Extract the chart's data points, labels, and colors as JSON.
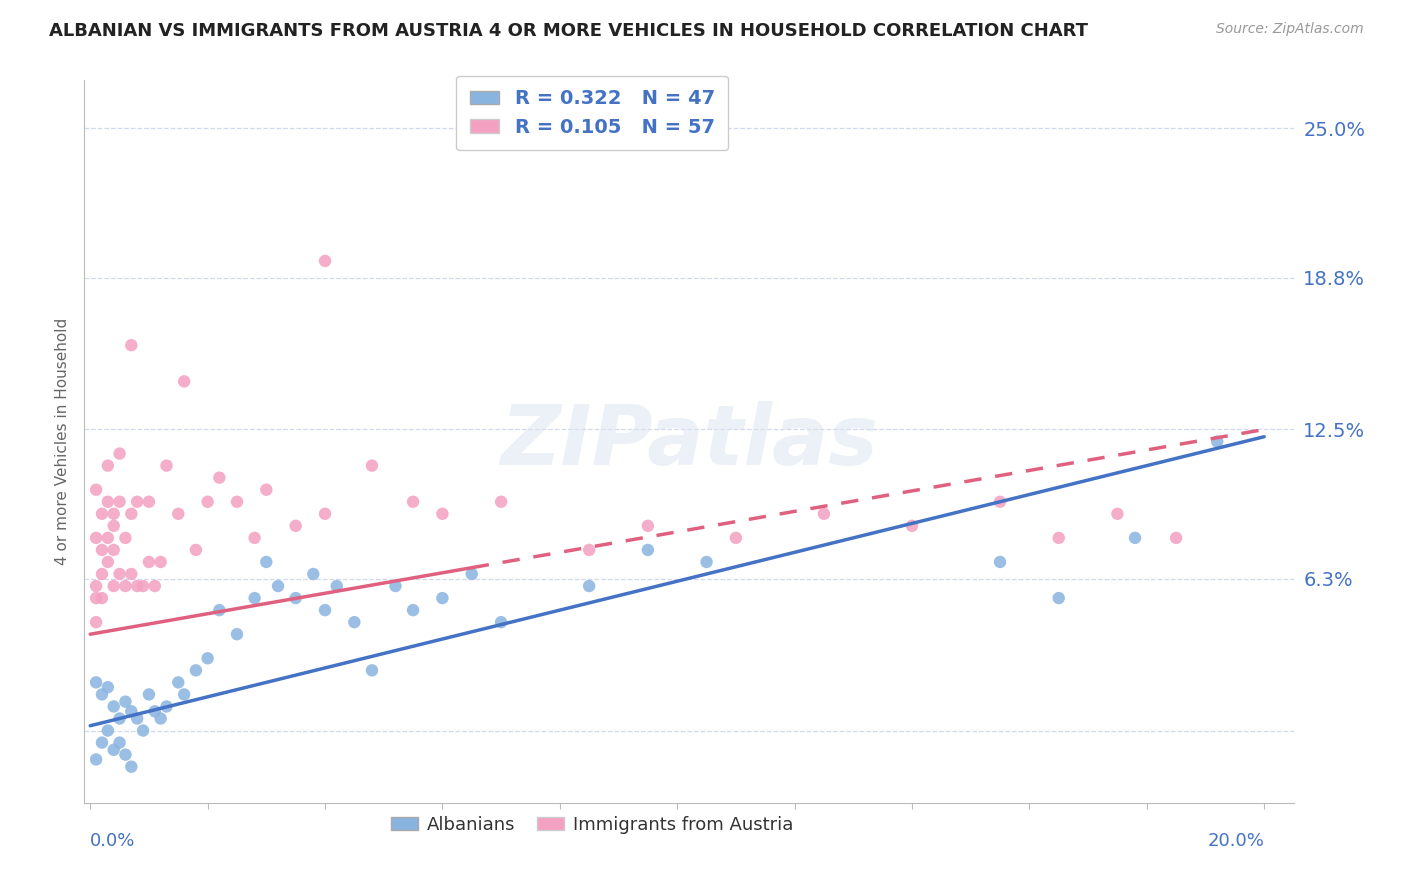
{
  "title": "ALBANIAN VS IMMIGRANTS FROM AUSTRIA 4 OR MORE VEHICLES IN HOUSEHOLD CORRELATION CHART",
  "source": "Source: ZipAtlas.com",
  "ylabel": "4 or more Vehicles in Household",
  "ytick_vals": [
    0.0,
    0.063,
    0.125,
    0.188,
    0.25
  ],
  "ytick_labels": [
    "",
    "6.3%",
    "12.5%",
    "18.8%",
    "25.0%"
  ],
  "xlim": [
    -0.001,
    0.205
  ],
  "ylim": [
    -0.03,
    0.27
  ],
  "legend_r1": "R = 0.322",
  "legend_n1": "N = 47",
  "legend_r2": "R = 0.105",
  "legend_n2": "N = 57",
  "color_albanian": "#8ab4e0",
  "color_austria": "#f4a0c0",
  "color_line_albanian": "#4472c4",
  "color_line_austria": "#e06080",
  "background_color": "#ffffff",
  "grid_color": "#d0d8ec",
  "albanians_x": [
    0.001,
    0.001,
    0.002,
    0.002,
    0.003,
    0.003,
    0.004,
    0.004,
    0.005,
    0.005,
    0.006,
    0.006,
    0.007,
    0.007,
    0.008,
    0.009,
    0.01,
    0.011,
    0.012,
    0.013,
    0.015,
    0.016,
    0.018,
    0.02,
    0.022,
    0.025,
    0.028,
    0.03,
    0.032,
    0.035,
    0.038,
    0.04,
    0.042,
    0.045,
    0.048,
    0.052,
    0.055,
    0.06,
    0.065,
    0.07,
    0.085,
    0.095,
    0.105,
    0.155,
    0.165,
    0.178,
    0.192
  ],
  "albanians_y": [
    -0.012,
    0.02,
    -0.005,
    0.015,
    0.0,
    0.018,
    0.01,
    -0.008,
    0.005,
    -0.005,
    0.012,
    -0.01,
    0.008,
    -0.015,
    0.005,
    0.0,
    0.015,
    0.008,
    0.005,
    0.01,
    0.02,
    0.015,
    0.025,
    0.03,
    0.05,
    0.04,
    0.055,
    0.07,
    0.06,
    0.055,
    0.065,
    0.05,
    0.06,
    0.045,
    0.025,
    0.06,
    0.05,
    0.055,
    0.065,
    0.045,
    0.06,
    0.075,
    0.07,
    0.07,
    0.055,
    0.08,
    0.12
  ],
  "austria_x": [
    0.001,
    0.001,
    0.001,
    0.001,
    0.001,
    0.002,
    0.002,
    0.002,
    0.002,
    0.003,
    0.003,
    0.003,
    0.003,
    0.004,
    0.004,
    0.004,
    0.004,
    0.005,
    0.005,
    0.005,
    0.006,
    0.006,
    0.007,
    0.007,
    0.007,
    0.008,
    0.008,
    0.009,
    0.01,
    0.01,
    0.011,
    0.012,
    0.013,
    0.015,
    0.016,
    0.018,
    0.02,
    0.022,
    0.025,
    0.028,
    0.03,
    0.035,
    0.04,
    0.048,
    0.055,
    0.06,
    0.07,
    0.085,
    0.095,
    0.11,
    0.125,
    0.14,
    0.155,
    0.165,
    0.175,
    0.185,
    0.04
  ],
  "austria_y": [
    0.06,
    0.08,
    0.055,
    0.1,
    0.045,
    0.065,
    0.09,
    0.075,
    0.055,
    0.08,
    0.07,
    0.095,
    0.11,
    0.06,
    0.085,
    0.075,
    0.09,
    0.065,
    0.095,
    0.115,
    0.06,
    0.08,
    0.065,
    0.09,
    0.16,
    0.06,
    0.095,
    0.06,
    0.07,
    0.095,
    0.06,
    0.07,
    0.11,
    0.09,
    0.145,
    0.075,
    0.095,
    0.105,
    0.095,
    0.08,
    0.1,
    0.085,
    0.09,
    0.11,
    0.095,
    0.09,
    0.095,
    0.075,
    0.085,
    0.08,
    0.09,
    0.085,
    0.095,
    0.08,
    0.09,
    0.08,
    0.195
  ],
  "line_albanian_x0": 0.0,
  "line_albanian_y0": 0.002,
  "line_albanian_x1": 0.2,
  "line_albanian_y1": 0.122,
  "line_austria_x0": 0.0,
  "line_austria_y0": 0.04,
  "line_austria_x1": 0.2,
  "line_austria_y1": 0.125
}
